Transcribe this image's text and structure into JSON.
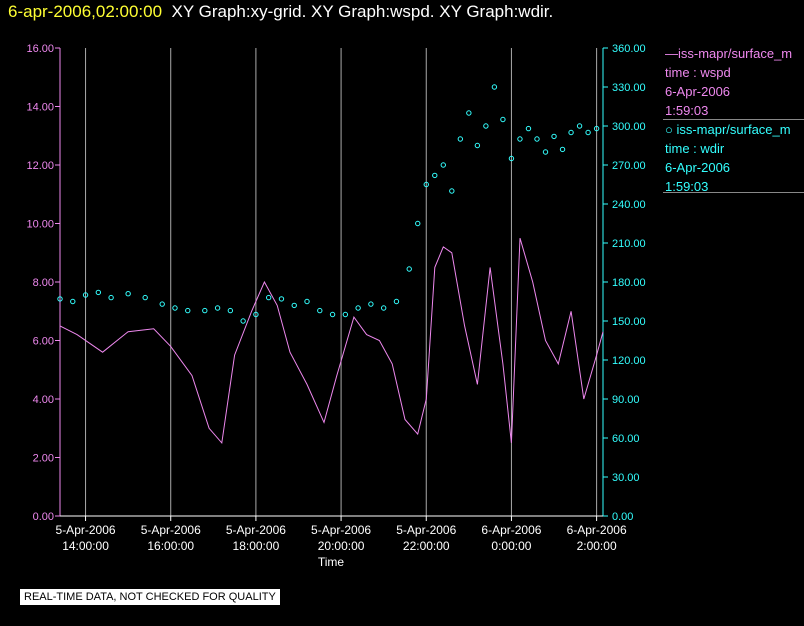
{
  "header": {
    "timestamp": "6-apr-2006,02:00:00",
    "graphs": "XY Graph:xy-grid.  XY Graph:wspd.  XY Graph:wdir."
  },
  "legend": {
    "series1": {
      "name": "—iss-mapr/surface_m",
      "line2": "time : wspd",
      "line3": "6-Apr-2006",
      "line4": "1:59:03"
    },
    "series2": {
      "name": "○ iss-mapr/surface_m",
      "line2": "time : wdir",
      "line3": "6-Apr-2006",
      "line4": "1:59:03"
    }
  },
  "note": "REAL-TIME DATA, NOT CHECKED FOR QUALITY",
  "colors": {
    "wspd": "#ee88ee",
    "wdir": "#33ffff",
    "timestamp": "#ffff33",
    "grid": "#aaaaaa"
  },
  "chart_data": {
    "type": "line+scatter",
    "xlabel": "Time",
    "x_range_hours": [
      -0.6,
      12.15
    ],
    "x_ticks": [
      {
        "h": 0,
        "l1": "5-Apr-2006",
        "l2": "14:00:00"
      },
      {
        "h": 2,
        "l1": "5-Apr-2006",
        "l2": "16:00:00"
      },
      {
        "h": 4,
        "l1": "5-Apr-2006",
        "l2": "18:00:00"
      },
      {
        "h": 6,
        "l1": "5-Apr-2006",
        "l2": "20:00:00"
      },
      {
        "h": 8,
        "l1": "5-Apr-2006",
        "l2": "22:00:00"
      },
      {
        "h": 10,
        "l1": "6-Apr-2006",
        "l2": "0:00:00"
      },
      {
        "h": 12,
        "l1": "6-Apr-2006",
        "l2": "2:00:00"
      }
    ],
    "y_left": {
      "range": [
        0,
        16
      ],
      "ticks": [
        "0.00",
        "2.00",
        "4.00",
        "6.00",
        "8.00",
        "10.00",
        "12.00",
        "14.00",
        "16.00"
      ]
    },
    "y_right": {
      "range": [
        0,
        360
      ],
      "ticks": [
        "0.00",
        "30.00",
        "60.00",
        "90.00",
        "120.00",
        "150.00",
        "180.00",
        "210.00",
        "240.00",
        "270.00",
        "300.00",
        "330.00",
        "360.00"
      ]
    },
    "series": [
      {
        "name": "wspd",
        "axis": "left",
        "style": "line",
        "x": [
          -0.6,
          -0.2,
          0.4,
          1.0,
          1.6,
          2.0,
          2.5,
          2.9,
          3.2,
          3.5,
          3.9,
          4.2,
          4.5,
          4.8,
          5.2,
          5.6,
          5.9,
          6.3,
          6.6,
          6.9,
          7.2,
          7.5,
          7.8,
          8.0,
          8.2,
          8.4,
          8.6,
          8.9,
          9.2,
          9.5,
          9.8,
          10.0,
          10.2,
          10.5,
          10.8,
          11.1,
          11.4,
          11.7,
          12.0,
          12.15
        ],
        "y": [
          6.5,
          6.2,
          5.6,
          6.3,
          6.4,
          5.8,
          4.8,
          3.0,
          2.5,
          5.5,
          7.0,
          8.0,
          7.2,
          5.6,
          4.5,
          3.2,
          4.8,
          6.8,
          6.2,
          6.0,
          5.2,
          3.3,
          2.8,
          4.0,
          8.5,
          9.2,
          9.0,
          6.5,
          4.5,
          8.5,
          5.2,
          2.5,
          9.5,
          8.0,
          6.0,
          5.2,
          7.0,
          4.0,
          5.5,
          6.3
        ]
      },
      {
        "name": "wdir",
        "axis": "right",
        "style": "markers",
        "x": [
          -0.6,
          -0.3,
          0.0,
          0.3,
          0.6,
          1.0,
          1.4,
          1.8,
          2.1,
          2.4,
          2.8,
          3.1,
          3.4,
          3.7,
          4.0,
          4.3,
          4.6,
          4.9,
          5.2,
          5.5,
          5.8,
          6.1,
          6.4,
          6.7,
          7.0,
          7.3,
          7.6,
          7.8,
          8.0,
          8.2,
          8.4,
          8.6,
          8.8,
          9.0,
          9.2,
          9.4,
          9.6,
          9.8,
          10.0,
          10.2,
          10.4,
          10.6,
          10.8,
          11.0,
          11.2,
          11.4,
          11.6,
          11.8,
          12.0
        ],
        "y": [
          167,
          165,
          170,
          172,
          168,
          171,
          168,
          163,
          160,
          158,
          158,
          160,
          158,
          150,
          155,
          168,
          167,
          162,
          165,
          158,
          155,
          155,
          160,
          163,
          160,
          165,
          190,
          225,
          255,
          262,
          270,
          250,
          290,
          310,
          285,
          300,
          330,
          305,
          275,
          290,
          298,
          290,
          280,
          292,
          282,
          295,
          300,
          295,
          298
        ]
      }
    ]
  }
}
